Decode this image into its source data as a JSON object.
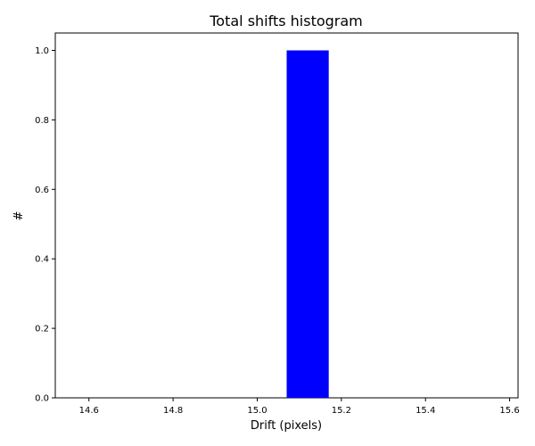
{
  "chart_data": {
    "type": "bar",
    "title": "Total shifts histogram",
    "xlabel": "Drift (pixels)",
    "ylabel": "#",
    "xlim": [
      14.52,
      15.62
    ],
    "ylim": [
      0.0,
      1.05
    ],
    "xticks": [
      "14.6",
      "14.8",
      "15.0",
      "15.2",
      "15.4",
      "15.6"
    ],
    "yticks": [
      "0.0",
      "0.2",
      "0.4",
      "0.6",
      "0.8",
      "1.0"
    ],
    "bins": [
      {
        "x_start": 15.07,
        "x_end": 15.17,
        "count": 1.0
      }
    ],
    "bar_color": "#0000ff",
    "grid": false,
    "legend": "none"
  }
}
